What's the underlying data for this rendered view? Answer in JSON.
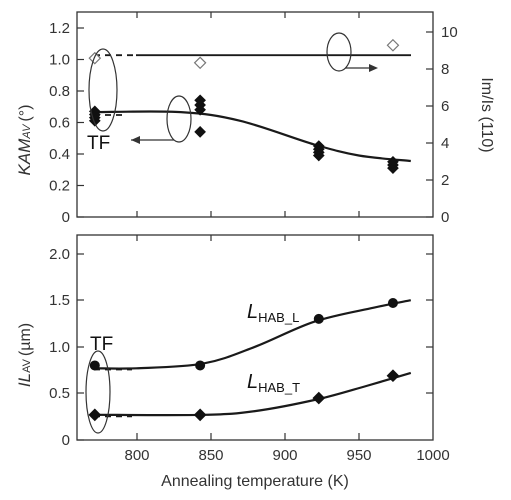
{
  "chart_data": [
    {
      "type": "scatter",
      "title": "",
      "xlabel": "",
      "xlim": [
        760,
        1000
      ],
      "ylabel": "KAMAV (°)",
      "ylabel_main": "KAM",
      "ylabel_sub": "AV",
      "ylabel_unit": "(°)",
      "ylim": [
        0,
        1.3
      ],
      "yticks": [
        "0",
        "0.2",
        "0.4",
        "0.6",
        "0.8",
        "1.0",
        "1.2"
      ],
      "ytick_values": [
        0,
        0.2,
        0.4,
        0.6,
        0.8,
        1.0,
        1.2
      ],
      "y2label": "Im/Is (110)",
      "y2lim": [
        0,
        11.1
      ],
      "y2ticks": [
        "0",
        "2",
        "4",
        "6",
        "8",
        "10"
      ],
      "y2tick_values": [
        0,
        2,
        4,
        6,
        8,
        10
      ],
      "annotation": "TF",
      "series": [
        {
          "axis": "left",
          "marker": "filled-diamond",
          "points": [
            [
              772,
              0.61
            ],
            [
              772,
              0.63
            ],
            [
              772,
              0.65
            ],
            [
              772,
              0.67
            ],
            [
              843,
              0.54
            ],
            [
              843,
              0.68
            ],
            [
              843,
              0.71
            ],
            [
              843,
              0.74
            ],
            [
              923,
              0.39
            ],
            [
              923,
              0.41
            ],
            [
              923,
              0.43
            ],
            [
              923,
              0.45
            ],
            [
              973,
              0.31
            ],
            [
              973,
              0.33
            ],
            [
              973,
              0.35
            ]
          ],
          "fit": [
            [
              772,
              0.665
            ],
            [
              830,
              0.665
            ],
            [
              870,
              0.61
            ],
            [
              920,
              0.46
            ],
            [
              950,
              0.39
            ],
            [
              985,
              0.355
            ]
          ]
        },
        {
          "axis": "right",
          "marker": "open-diamond",
          "points": [
            [
              772,
              8.6
            ],
            [
              843,
              8.35
            ],
            [
              973,
              9.3
            ]
          ],
          "fit": [
            [
              772,
              8.95
            ],
            [
              985,
              8.95
            ]
          ]
        }
      ]
    },
    {
      "type": "line",
      "title": "",
      "xlabel": "Annealing temperature (K)",
      "xlim": [
        760,
        1000
      ],
      "xticks": [
        "800",
        "850",
        "900",
        "950",
        "1000"
      ],
      "xtick_values": [
        800,
        850,
        900,
        950,
        1000
      ],
      "ylabel": "ILAV (µm)",
      "ylabel_main": "I",
      "ylabel_italic_part": "L",
      "ylabel_sub": "AV",
      "ylabel_unit": "(µm)",
      "ylim": [
        0,
        2.2
      ],
      "yticks": [
        "0",
        "0.5",
        "1.0",
        "1.5",
        "2.0"
      ],
      "ytick_values": [
        0,
        0.5,
        1.0,
        1.5,
        2.0
      ],
      "annotation": "TF",
      "series": [
        {
          "label_main": "L",
          "label_sub": "HAB_L",
          "marker": "filled-circle",
          "points": [
            [
              772,
              0.8
            ],
            [
              843,
              0.8
            ],
            [
              923,
              1.3
            ],
            [
              973,
              1.47
            ]
          ],
          "fit": [
            [
              772,
              0.77
            ],
            [
              800,
              0.77
            ],
            [
              845,
              0.82
            ],
            [
              880,
              1.0
            ],
            [
              920,
              1.27
            ],
            [
              960,
              1.42
            ],
            [
              985,
              1.5
            ]
          ]
        },
        {
          "label_main": "L",
          "label_sub": "HAB_T",
          "marker": "filled-diamond",
          "points": [
            [
              772,
              0.27
            ],
            [
              843,
              0.27
            ],
            [
              923,
              0.45
            ],
            [
              973,
              0.69
            ]
          ],
          "fit": [
            [
              772,
              0.27
            ],
            [
              845,
              0.27
            ],
            [
              880,
              0.31
            ],
            [
              923,
              0.44
            ],
            [
              955,
              0.58
            ],
            [
              985,
              0.72
            ]
          ]
        }
      ]
    }
  ]
}
